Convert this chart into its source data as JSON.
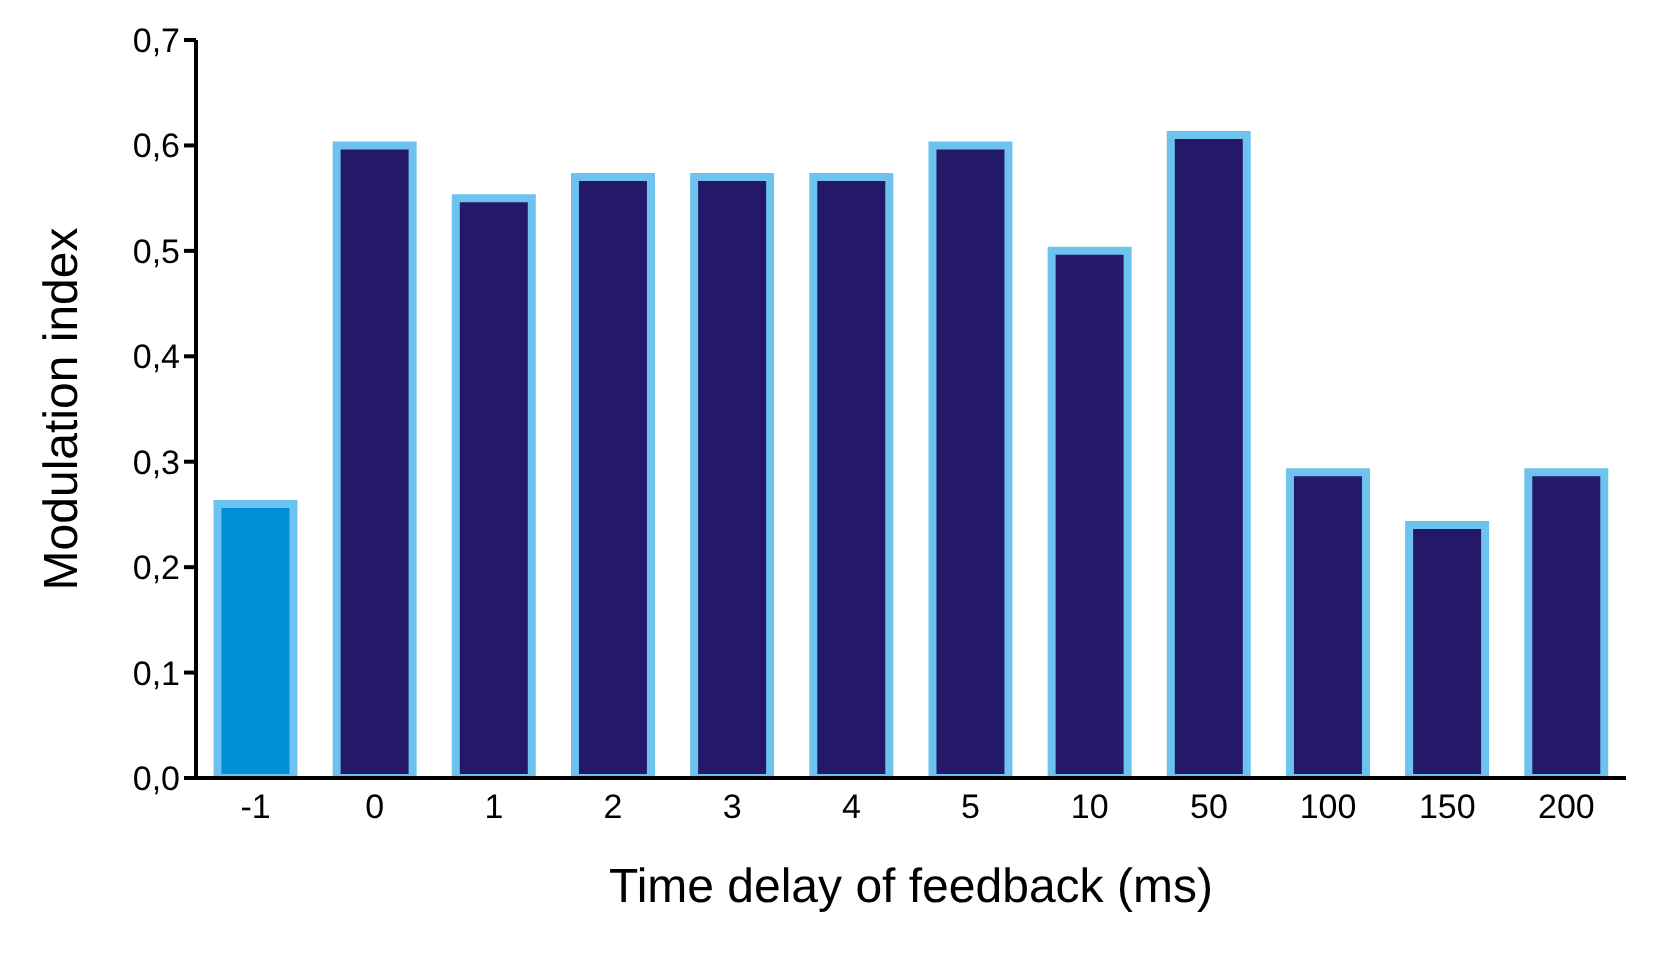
{
  "chart_data": {
    "type": "bar",
    "xlabel": "Time delay of feedback (ms)",
    "ylabel": "Modulation index",
    "categories": [
      "-1",
      "0",
      "1",
      "2",
      "3",
      "4",
      "5",
      "10",
      "50",
      "100",
      "150",
      "200"
    ],
    "values": [
      0.26,
      0.6,
      0.55,
      0.57,
      0.57,
      0.57,
      0.6,
      0.5,
      0.61,
      0.29,
      0.24,
      0.29
    ],
    "colors": [
      "#0090d8",
      "#24186a",
      "#24186a",
      "#24186a",
      "#24186a",
      "#24186a",
      "#24186a",
      "#24186a",
      "#24186a",
      "#24186a",
      "#24186a",
      "#24186a"
    ],
    "ylim": [
      0,
      0.7
    ],
    "yticks": [
      {
        "value": 0,
        "label": "0,0"
      },
      {
        "value": 0.1,
        "label": "0,1"
      },
      {
        "value": 0.2,
        "label": "0,2"
      },
      {
        "value": 0.3,
        "label": "0,3"
      },
      {
        "value": 0.4,
        "label": "0,4"
      },
      {
        "value": 0.5,
        "label": "0,5"
      },
      {
        "value": 0.6,
        "label": "0,6"
      },
      {
        "value": 0.7,
        "label": "0,7"
      }
    ],
    "grid": false,
    "legend": false
  }
}
